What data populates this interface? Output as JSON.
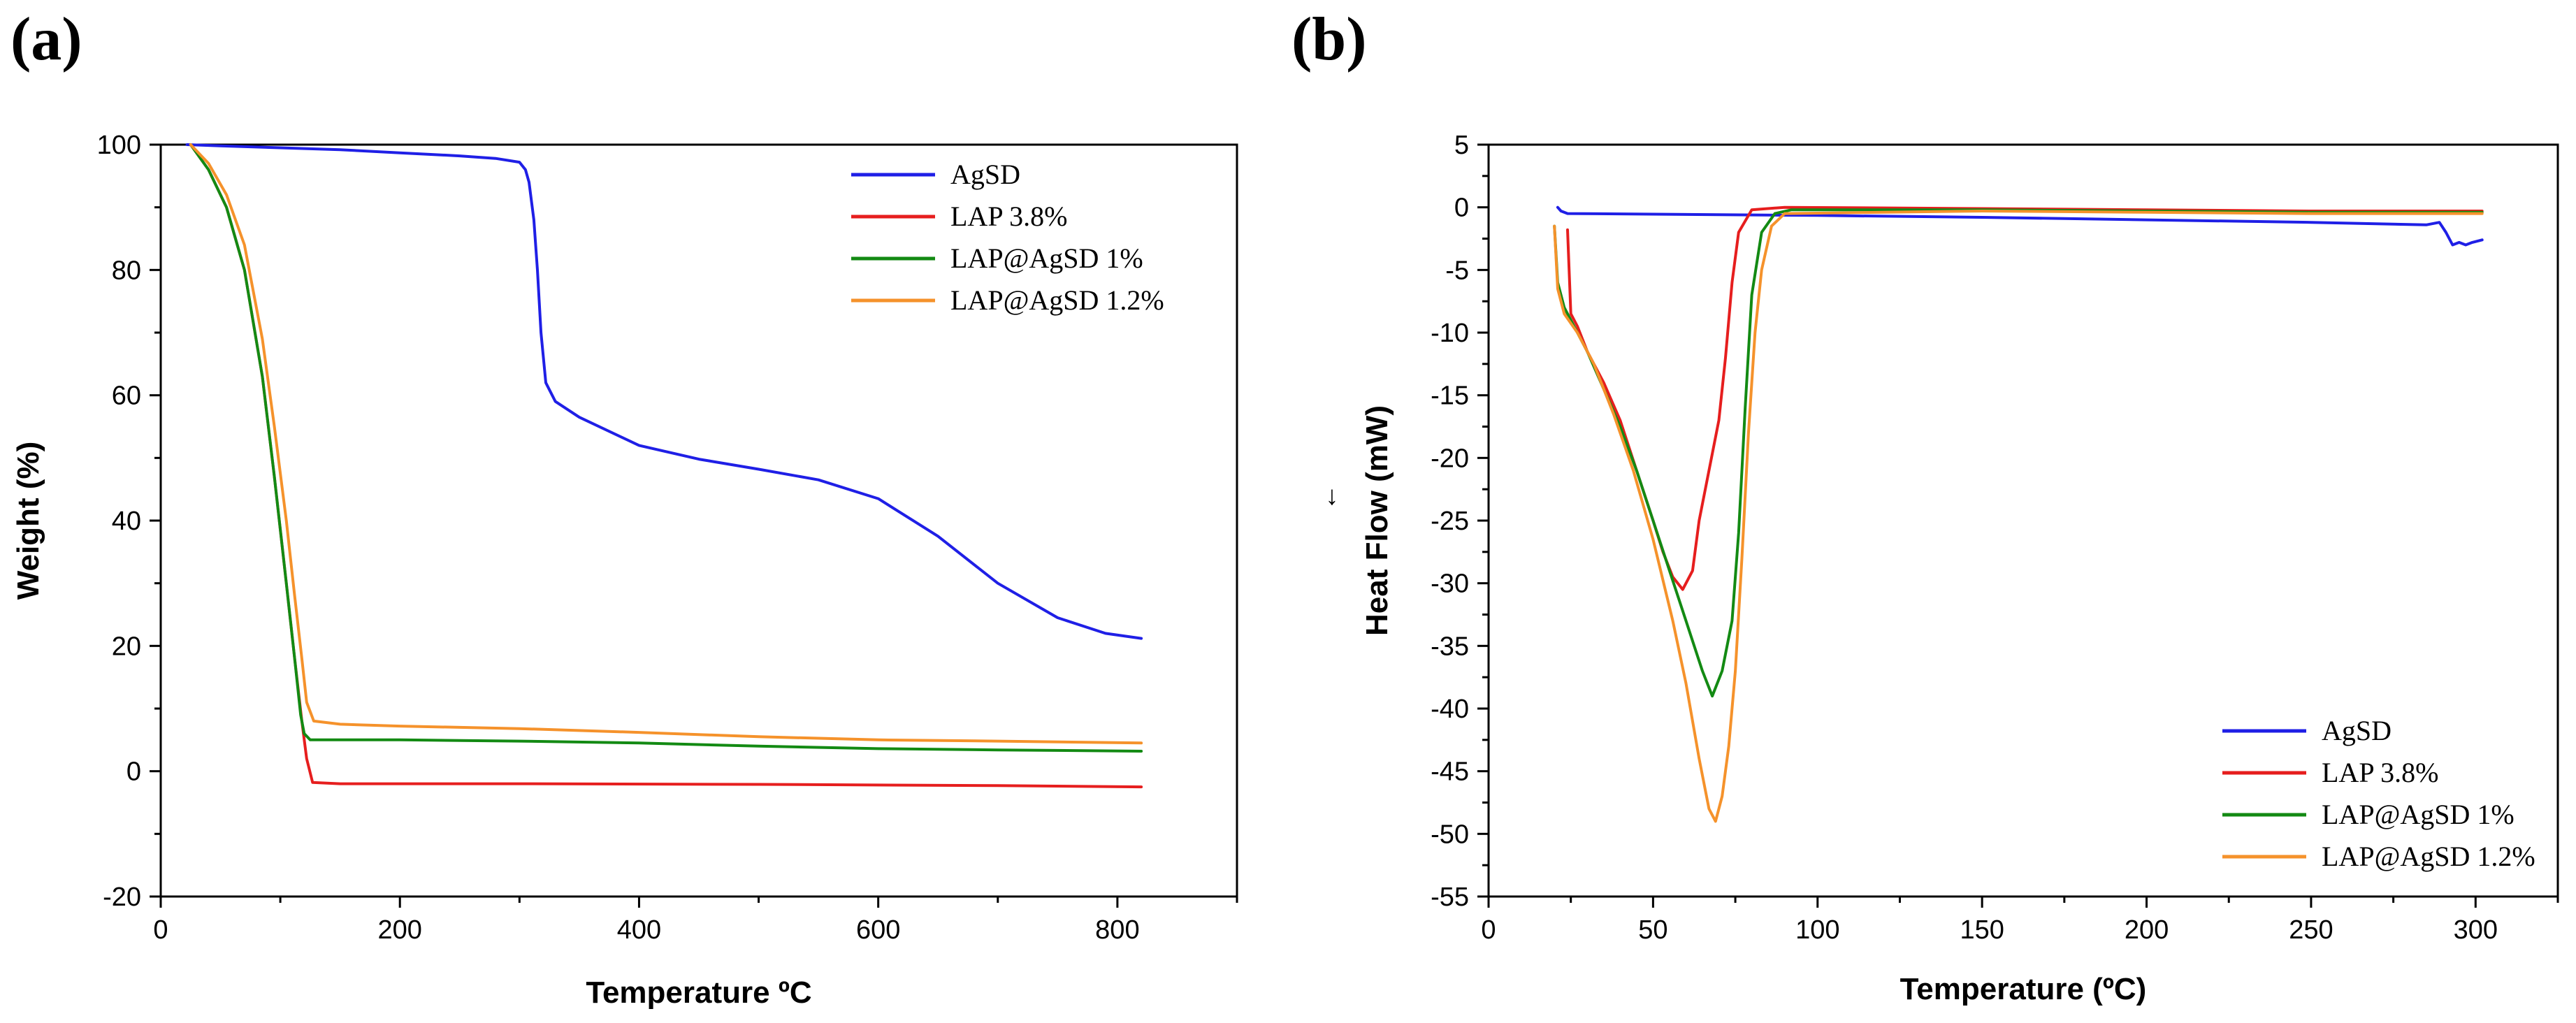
{
  "colors": {
    "AgSD": "#1f1fe6",
    "LAP 3.8%": "#e61e1e",
    "LAP@AgSD 1%": "#138a13",
    "LAP@AgSD 1.2%": "#f5922b"
  },
  "chart_data": [
    {
      "panel_label": "(a)",
      "type": "line",
      "xlabel": "Temperature ºC",
      "ylabel": "Weight (%)",
      "xlim": [
        0,
        900
      ],
      "ylim": [
        -20,
        100
      ],
      "xticks": [
        0,
        200,
        400,
        600,
        800
      ],
      "yticks": [
        -20,
        0,
        20,
        40,
        60,
        80,
        100
      ],
      "legend_position": "top-right",
      "series": [
        {
          "name": "AgSD",
          "points": [
            [
              22,
              100
            ],
            [
              50,
              99.8
            ],
            [
              100,
              99.5
            ],
            [
              150,
              99.2
            ],
            [
              200,
              98.7
            ],
            [
              250,
              98.2
            ],
            [
              280,
              97.8
            ],
            [
              300,
              97.2
            ],
            [
              305,
              96
            ],
            [
              308,
              94
            ],
            [
              312,
              88
            ],
            [
              315,
              80
            ],
            [
              318,
              70
            ],
            [
              322,
              62
            ],
            [
              330,
              59
            ],
            [
              350,
              56.5
            ],
            [
              400,
              52
            ],
            [
              450,
              49.8
            ],
            [
              500,
              48.2
            ],
            [
              550,
              46.5
            ],
            [
              600,
              43.5
            ],
            [
              650,
              37.5
            ],
            [
              700,
              30
            ],
            [
              750,
              24.5
            ],
            [
              790,
              22
            ],
            [
              820,
              21.2
            ]
          ]
        },
        {
          "name": "LAP 3.8%",
          "points": [
            [
              25,
              100
            ],
            [
              40,
              96
            ],
            [
              55,
              90
            ],
            [
              70,
              80
            ],
            [
              85,
              63
            ],
            [
              95,
              47
            ],
            [
              105,
              30
            ],
            [
              112,
              18
            ],
            [
              118,
              8
            ],
            [
              122,
              2
            ],
            [
              127,
              -1.8
            ],
            [
              150,
              -2
            ],
            [
              300,
              -2
            ],
            [
              500,
              -2.1
            ],
            [
              700,
              -2.3
            ],
            [
              820,
              -2.5
            ]
          ]
        },
        {
          "name": "LAP@AgSD 1%",
          "points": [
            [
              25,
              100
            ],
            [
              40,
              96
            ],
            [
              55,
              90
            ],
            [
              70,
              80
            ],
            [
              85,
              63
            ],
            [
              95,
              47
            ],
            [
              105,
              30
            ],
            [
              112,
              18
            ],
            [
              117,
              9
            ],
            [
              120,
              6
            ],
            [
              125,
              5
            ],
            [
              200,
              5
            ],
            [
              300,
              4.8
            ],
            [
              400,
              4.5
            ],
            [
              500,
              4
            ],
            [
              600,
              3.6
            ],
            [
              700,
              3.4
            ],
            [
              820,
              3.2
            ]
          ]
        },
        {
          "name": "LAP@AgSD 1.2%",
          "points": [
            [
              25,
              100
            ],
            [
              40,
              97
            ],
            [
              55,
              92
            ],
            [
              70,
              84
            ],
            [
              85,
              69
            ],
            [
              95,
              55
            ],
            [
              105,
              40
            ],
            [
              112,
              28
            ],
            [
              118,
              18
            ],
            [
              122,
              11
            ],
            [
              128,
              8
            ],
            [
              150,
              7.5
            ],
            [
              200,
              7.2
            ],
            [
              300,
              6.8
            ],
            [
              400,
              6.2
            ],
            [
              500,
              5.5
            ],
            [
              600,
              5
            ],
            [
              700,
              4.8
            ],
            [
              820,
              4.5
            ]
          ]
        }
      ]
    },
    {
      "panel_label": "(b)",
      "type": "line",
      "xlabel": "Temperature (ºC)",
      "ylabel": "Heat Flow (mW)",
      "ylabel_arrow": "↓",
      "xlim": [
        0,
        325
      ],
      "ylim": [
        -55,
        5
      ],
      "xticks": [
        0,
        50,
        100,
        150,
        200,
        250,
        300
      ],
      "yticks": [
        5,
        0,
        -5,
        -10,
        -15,
        -20,
        -25,
        -30,
        -35,
        -40,
        -45,
        -50,
        -55
      ],
      "legend_position": "bottom-right",
      "series": [
        {
          "name": "AgSD",
          "points": [
            [
              21,
              0
            ],
            [
              22,
              -0.3
            ],
            [
              24,
              -0.5
            ],
            [
              50,
              -0.55
            ],
            [
              100,
              -0.65
            ],
            [
              150,
              -0.8
            ],
            [
              200,
              -1
            ],
            [
              250,
              -1.2
            ],
            [
              285,
              -1.4
            ],
            [
              289,
              -1.2
            ],
            [
              291,
              -2
            ],
            [
              293,
              -3
            ],
            [
              295,
              -2.8
            ],
            [
              297,
              -3
            ],
            [
              299,
              -2.8
            ],
            [
              302,
              -2.6
            ]
          ]
        },
        {
          "name": "LAP 3.8%",
          "points": [
            [
              24,
              -1.8
            ],
            [
              25,
              -8.5
            ],
            [
              27,
              -9.5
            ],
            [
              30,
              -11.5
            ],
            [
              35,
              -14
            ],
            [
              40,
              -17
            ],
            [
              45,
              -21
            ],
            [
              50,
              -25
            ],
            [
              53,
              -27.5
            ],
            [
              56,
              -29.5
            ],
            [
              59,
              -30.5
            ],
            [
              62,
              -29
            ],
            [
              64,
              -25
            ],
            [
              67,
              -21
            ],
            [
              70,
              -17
            ],
            [
              72,
              -12
            ],
            [
              74,
              -6
            ],
            [
              76,
              -2
            ],
            [
              80,
              -0.2
            ],
            [
              90,
              0
            ],
            [
              150,
              -0.1
            ],
            [
              200,
              -0.2
            ],
            [
              250,
              -0.3
            ],
            [
              302,
              -0.3
            ]
          ]
        },
        {
          "name": "LAP@AgSD 1%",
          "points": [
            [
              20,
              -1.5
            ],
            [
              21,
              -6
            ],
            [
              23,
              -8
            ],
            [
              26,
              -9.5
            ],
            [
              30,
              -11.5
            ],
            [
              35,
              -14.5
            ],
            [
              40,
              -17.5
            ],
            [
              45,
              -21
            ],
            [
              50,
              -25
            ],
            [
              55,
              -29
            ],
            [
              60,
              -33
            ],
            [
              65,
              -37
            ],
            [
              68,
              -39
            ],
            [
              71,
              -37
            ],
            [
              74,
              -33
            ],
            [
              76,
              -26
            ],
            [
              78,
              -16
            ],
            [
              80,
              -7
            ],
            [
              83,
              -2
            ],
            [
              87,
              -0.5
            ],
            [
              92,
              -0.2
            ],
            [
              150,
              -0.2
            ],
            [
              200,
              -0.3
            ],
            [
              250,
              -0.4
            ],
            [
              302,
              -0.4
            ]
          ]
        },
        {
          "name": "LAP@AgSD 1.2%",
          "points": [
            [
              20,
              -1.5
            ],
            [
              21,
              -6.5
            ],
            [
              23,
              -8.5
            ],
            [
              27,
              -10
            ],
            [
              32,
              -12.5
            ],
            [
              38,
              -16.5
            ],
            [
              44,
              -21
            ],
            [
              50,
              -26.5
            ],
            [
              56,
              -33
            ],
            [
              60,
              -38
            ],
            [
              64,
              -44
            ],
            [
              67,
              -48
            ],
            [
              69,
              -49
            ],
            [
              71,
              -47
            ],
            [
              73,
              -43
            ],
            [
              75,
              -37
            ],
            [
              77,
              -28
            ],
            [
              79,
              -18
            ],
            [
              81,
              -10
            ],
            [
              83,
              -5
            ],
            [
              86,
              -1.5
            ],
            [
              90,
              -0.5
            ],
            [
              150,
              -0.3
            ],
            [
              200,
              -0.4
            ],
            [
              250,
              -0.5
            ],
            [
              302,
              -0.5
            ]
          ]
        }
      ]
    }
  ]
}
